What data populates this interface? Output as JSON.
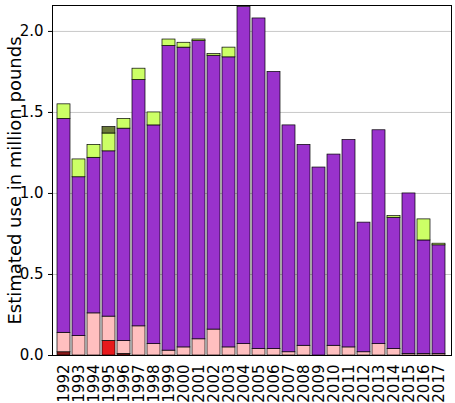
{
  "chart_data": {
    "type": "bar",
    "stacked": true,
    "grid": true,
    "y_label": "Estimated use in million pounds",
    "categories": [
      "1992",
      "1993",
      "1994",
      "1995",
      "1996",
      "1997",
      "1998",
      "1999",
      "2000",
      "2001",
      "2002",
      "2003",
      "2004",
      "2005",
      "2006",
      "2007",
      "2008",
      "2009",
      "2010",
      "2011",
      "2012",
      "2013",
      "2014",
      "2015",
      "2016",
      "2017"
    ],
    "series": [
      {
        "color": "#8b1a1a",
        "values": [
          0.02,
          0,
          0,
          0,
          0.01,
          0,
          0,
          0,
          0,
          0,
          0,
          0,
          0,
          0,
          0,
          0,
          0,
          0,
          0,
          0,
          0,
          0,
          0,
          0,
          0,
          0
        ]
      },
      {
        "color": "#e8191c",
        "values": [
          0,
          0,
          0,
          0.09,
          0,
          0,
          0,
          0,
          0,
          0,
          0,
          0,
          0,
          0,
          0,
          0,
          0,
          0,
          0,
          0,
          0,
          0,
          0,
          0,
          0,
          0
        ]
      },
      {
        "color": "#ffbfbf",
        "values": [
          0.12,
          0.12,
          0.26,
          0.15,
          0.08,
          0.18,
          0.07,
          0.03,
          0.05,
          0.1,
          0.16,
          0.05,
          0.07,
          0.04,
          0.04,
          0.02,
          0.06,
          0,
          0.06,
          0.05,
          0.02,
          0.07,
          0.04,
          0.01,
          0.01,
          0.01
        ]
      },
      {
        "color": "#9932cc",
        "values": [
          1.32,
          0.98,
          0.96,
          1.02,
          1.31,
          1.52,
          1.35,
          1.88,
          1.85,
          1.84,
          1.69,
          1.79,
          2.08,
          2.04,
          1.71,
          1.4,
          1.24,
          1.16,
          1.18,
          1.28,
          0.8,
          1.32,
          0.81,
          0.99,
          0.7,
          0.67
        ]
      },
      {
        "color": "#ccff66",
        "values": [
          0.09,
          0.11,
          0.08,
          0.11,
          0.06,
          0.07,
          0.08,
          0.04,
          0.03,
          0.01,
          0.01,
          0.06,
          0,
          0,
          0,
          0,
          0,
          0,
          0,
          0,
          0,
          0,
          0.01,
          0,
          0.13,
          0.01
        ]
      },
      {
        "color": "#6b7a3a",
        "values": [
          0,
          0,
          0,
          0.04,
          0,
          0,
          0,
          0,
          0,
          0,
          0,
          0,
          0,
          0,
          0,
          0,
          0,
          0,
          0,
          0,
          0,
          0,
          0,
          0,
          0,
          0
        ]
      }
    ],
    "ylim": [
      0,
      2.16
    ],
    "yticks": [
      {
        "value": 0,
        "label": "0.0"
      },
      {
        "value": 0.5,
        "label": "0.5"
      },
      {
        "value": 1,
        "label": "1.0"
      },
      {
        "value": 1.5,
        "label": "1.5"
      },
      {
        "value": 2,
        "label": "2.0"
      }
    ]
  }
}
